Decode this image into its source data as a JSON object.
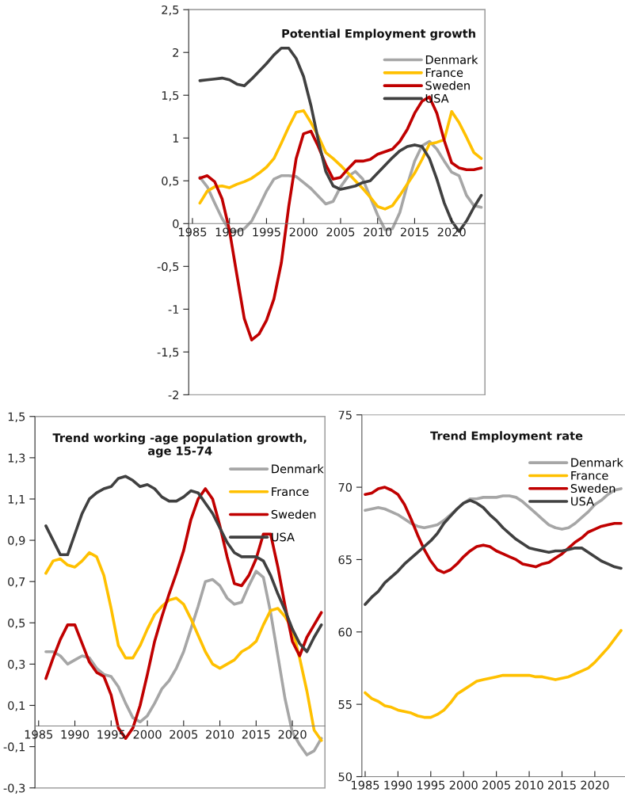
{
  "chart_data": [
    {
      "type": "line",
      "title": "Potential Employment growth",
      "x": [
        1986,
        1987,
        1988,
        1989,
        1990,
        1991,
        1992,
        1993,
        1994,
        1995,
        1996,
        1997,
        1998,
        1999,
        2000,
        2001,
        2002,
        2003,
        2004,
        2005,
        2006,
        2007,
        2008,
        2009,
        2010,
        2011,
        2012,
        2013,
        2014,
        2015,
        2016,
        2017,
        2018,
        2019,
        2020,
        2021,
        2022,
        2023,
        2024
      ],
      "xlim": [
        1984.5,
        2024.5
      ],
      "xticks": [
        1985,
        1990,
        1995,
        2000,
        2005,
        2010,
        2015,
        2020
      ],
      "ylim": [
        -2,
        2.5
      ],
      "yticks": [
        {
          "value": -2,
          "label": "-2"
        },
        {
          "value": -1.5,
          "label": "-1,5"
        },
        {
          "value": -1,
          "label": "-1"
        },
        {
          "value": -0.5,
          "label": "-0,5"
        },
        {
          "value": 0,
          "label": "0"
        },
        {
          "value": 0.5,
          "label": "0,5"
        },
        {
          "value": 1,
          "label": "1"
        },
        {
          "value": 1.5,
          "label": "1,5"
        },
        {
          "value": 2,
          "label": "2"
        },
        {
          "value": 2.5,
          "label": "2,5"
        }
      ],
      "legend": "top right",
      "grid": false,
      "marker": "none",
      "line_style": "solid",
      "series": [
        {
          "name": "Denmark",
          "color": "#a6a6a6",
          "values": [
            0.54,
            0.43,
            0.24,
            0.06,
            -0.08,
            -0.09,
            -0.06,
            0.03,
            0.2,
            0.38,
            0.52,
            0.56,
            0.56,
            0.55,
            0.48,
            0.41,
            0.32,
            0.23,
            0.26,
            0.43,
            0.55,
            0.61,
            0.52,
            0.31,
            0.1,
            -0.07,
            -0.06,
            0.13,
            0.45,
            0.73,
            0.91,
            0.96,
            0.87,
            0.73,
            0.6,
            0.56,
            0.33,
            0.21,
            0.19
          ]
        },
        {
          "name": "France",
          "color": "#ffc000",
          "values": [
            0.24,
            0.38,
            0.43,
            0.44,
            0.42,
            0.46,
            0.49,
            0.53,
            0.59,
            0.66,
            0.76,
            0.94,
            1.13,
            1.3,
            1.32,
            1.18,
            1.02,
            0.83,
            0.76,
            0.68,
            0.59,
            0.5,
            0.41,
            0.31,
            0.2,
            0.17,
            0.21,
            0.33,
            0.46,
            0.59,
            0.75,
            0.93,
            0.95,
            0.98,
            1.31,
            1.18,
            1.01,
            0.83,
            0.76
          ]
        },
        {
          "name": "Sweden",
          "color": "#c00000",
          "values": [
            0.53,
            0.56,
            0.49,
            0.29,
            -0.08,
            -0.6,
            -1.11,
            -1.36,
            -1.29,
            -1.13,
            -0.88,
            -0.46,
            0.2,
            0.76,
            1.05,
            1.08,
            0.9,
            0.69,
            0.52,
            0.54,
            0.64,
            0.73,
            0.73,
            0.75,
            0.81,
            0.84,
            0.87,
            0.96,
            1.1,
            1.29,
            1.43,
            1.48,
            1.29,
            0.97,
            0.71,
            0.65,
            0.63,
            0.63,
            0.65
          ]
        },
        {
          "name": "USA",
          "color": "#404040",
          "values": [
            1.67,
            1.68,
            1.69,
            1.7,
            1.68,
            1.63,
            1.61,
            1.69,
            1.78,
            1.87,
            1.97,
            2.05,
            2.05,
            1.93,
            1.72,
            1.38,
            0.97,
            0.61,
            0.44,
            0.4,
            0.42,
            0.44,
            0.48,
            0.5,
            0.59,
            0.68,
            0.77,
            0.85,
            0.9,
            0.92,
            0.9,
            0.76,
            0.52,
            0.24,
            0.03,
            -0.09,
            0.03,
            0.19,
            0.33
          ]
        }
      ]
    },
    {
      "type": "line",
      "title": "Trend working -age population growth,\nage 15-74",
      "x": [
        1986,
        1987,
        1988,
        1989,
        1990,
        1991,
        1992,
        1993,
        1994,
        1995,
        1996,
        1997,
        1998,
        1999,
        2000,
        2001,
        2002,
        2003,
        2004,
        2005,
        2006,
        2007,
        2008,
        2009,
        2010,
        2011,
        2012,
        2013,
        2014,
        2015,
        2016,
        2017,
        2018,
        2019,
        2020,
        2021,
        2022,
        2023,
        2024
      ],
      "xlim": [
        1984.5,
        2024.5
      ],
      "xticks": [
        1985,
        1990,
        1995,
        2000,
        2005,
        2010,
        2015,
        2020
      ],
      "ylim": [
        -0.3,
        1.5
      ],
      "yticks": [
        {
          "value": -0.3,
          "label": "-0,3"
        },
        {
          "value": -0.1,
          "label": "-0,1"
        },
        {
          "value": 0.1,
          "label": "0,1"
        },
        {
          "value": 0.3,
          "label": "0,3"
        },
        {
          "value": 0.5,
          "label": "0,5"
        },
        {
          "value": 0.7,
          "label": "0,7"
        },
        {
          "value": 0.9,
          "label": "0,9"
        },
        {
          "value": 1.1,
          "label": "1,1"
        },
        {
          "value": 1.3,
          "label": "1,3"
        },
        {
          "value": 1.5,
          "label": "1,5"
        }
      ],
      "legend": "top right",
      "grid": false,
      "marker": "none",
      "line_style": "solid",
      "series": [
        {
          "name": "Denmark",
          "color": "#a6a6a6",
          "values": [
            0.36,
            0.36,
            0.34,
            0.3,
            0.32,
            0.34,
            0.33,
            0.28,
            0.25,
            0.24,
            0.19,
            0.11,
            0.04,
            0.02,
            0.05,
            0.11,
            0.18,
            0.22,
            0.28,
            0.36,
            0.47,
            0.58,
            0.7,
            0.71,
            0.68,
            0.62,
            0.59,
            0.6,
            0.68,
            0.75,
            0.72,
            0.55,
            0.34,
            0.13,
            -0.03,
            -0.09,
            -0.14,
            -0.12,
            -0.06
          ]
        },
        {
          "name": "France",
          "color": "#ffc000",
          "values": [
            0.74,
            0.8,
            0.81,
            0.78,
            0.77,
            0.8,
            0.84,
            0.82,
            0.73,
            0.57,
            0.39,
            0.33,
            0.33,
            0.39,
            0.47,
            0.54,
            0.58,
            0.61,
            0.62,
            0.59,
            0.52,
            0.44,
            0.36,
            0.3,
            0.28,
            0.3,
            0.32,
            0.36,
            0.38,
            0.41,
            0.49,
            0.56,
            0.57,
            0.53,
            0.47,
            0.33,
            0.17,
            -0.02,
            -0.07
          ]
        },
        {
          "name": "Sweden",
          "color": "#c00000",
          "values": [
            0.23,
            0.33,
            0.42,
            0.49,
            0.49,
            0.4,
            0.31,
            0.26,
            0.24,
            0.15,
            -0.01,
            -0.06,
            -0.01,
            0.1,
            0.25,
            0.41,
            0.53,
            0.64,
            0.74,
            0.85,
            1.0,
            1.1,
            1.15,
            1.1,
            0.97,
            0.82,
            0.69,
            0.68,
            0.73,
            0.81,
            0.93,
            0.93,
            0.77,
            0.58,
            0.41,
            0.34,
            0.43,
            0.49,
            0.55
          ]
        },
        {
          "name": "USA",
          "color": "#404040",
          "values": [
            0.97,
            0.9,
            0.83,
            0.83,
            0.93,
            1.03,
            1.1,
            1.13,
            1.15,
            1.16,
            1.2,
            1.21,
            1.19,
            1.16,
            1.17,
            1.15,
            1.11,
            1.09,
            1.09,
            1.11,
            1.14,
            1.13,
            1.08,
            1.03,
            0.96,
            0.89,
            0.84,
            0.82,
            0.82,
            0.82,
            0.8,
            0.73,
            0.64,
            0.56,
            0.47,
            0.4,
            0.36,
            0.43,
            0.49
          ]
        }
      ]
    },
    {
      "type": "line",
      "title": "Trend Employment rate",
      "x": [
        1985,
        1986,
        1987,
        1988,
        1989,
        1990,
        1991,
        1992,
        1993,
        1994,
        1995,
        1996,
        1997,
        1998,
        1999,
        2000,
        2001,
        2002,
        2003,
        2004,
        2005,
        2006,
        2007,
        2008,
        2009,
        2010,
        2011,
        2012,
        2013,
        2014,
        2015,
        2016,
        2017,
        2018,
        2019,
        2020,
        2021,
        2022,
        2023,
        2024
      ],
      "xlim": [
        1984.5,
        2024.6
      ],
      "xticks": [
        1985,
        1990,
        1995,
        2000,
        2005,
        2010,
        2015,
        2020
      ],
      "ylim": [
        50,
        75
      ],
      "yticks": [
        50,
        55,
        60,
        65,
        70,
        75
      ],
      "legend": "top right",
      "grid": false,
      "marker": "none",
      "line_style": "solid",
      "series": [
        {
          "name": "Denmark",
          "color": "#a6a6a6",
          "values": [
            68.4,
            68.5,
            68.6,
            68.5,
            68.3,
            68.1,
            67.8,
            67.5,
            67.3,
            67.2,
            67.3,
            67.4,
            67.7,
            68.1,
            68.5,
            68.9,
            69.2,
            69.2,
            69.3,
            69.3,
            69.3,
            69.4,
            69.4,
            69.3,
            69.0,
            68.6,
            68.2,
            67.8,
            67.4,
            67.2,
            67.1,
            67.2,
            67.5,
            67.9,
            68.3,
            68.8,
            69.1,
            69.5,
            69.8,
            69.9
          ]
        },
        {
          "name": "France",
          "color": "#ffc000",
          "values": [
            55.8,
            55.4,
            55.2,
            54.9,
            54.8,
            54.6,
            54.5,
            54.4,
            54.2,
            54.1,
            54.1,
            54.3,
            54.6,
            55.1,
            55.7,
            56.0,
            56.3,
            56.6,
            56.7,
            56.8,
            56.9,
            57.0,
            57.0,
            57.0,
            57.0,
            57.0,
            56.9,
            56.9,
            56.8,
            56.7,
            56.8,
            56.9,
            57.1,
            57.3,
            57.5,
            57.9,
            58.4,
            58.9,
            59.5,
            60.1
          ]
        },
        {
          "name": "Sweden",
          "color": "#c00000",
          "values": [
            69.5,
            69.6,
            69.9,
            70.0,
            69.8,
            69.5,
            68.8,
            67.8,
            66.7,
            65.7,
            64.9,
            64.3,
            64.1,
            64.3,
            64.7,
            65.2,
            65.6,
            65.9,
            66.0,
            65.9,
            65.6,
            65.4,
            65.2,
            65.0,
            64.7,
            64.6,
            64.5,
            64.7,
            64.8,
            65.1,
            65.4,
            65.8,
            66.2,
            66.5,
            66.9,
            67.1,
            67.3,
            67.4,
            67.5,
            67.5
          ]
        },
        {
          "name": "USA",
          "color": "#404040",
          "values": [
            61.9,
            62.4,
            62.8,
            63.4,
            63.8,
            64.2,
            64.7,
            65.1,
            65.5,
            65.9,
            66.3,
            66.8,
            67.5,
            68.0,
            68.5,
            68.9,
            69.1,
            68.9,
            68.6,
            68.1,
            67.7,
            67.2,
            66.8,
            66.4,
            66.1,
            65.8,
            65.7,
            65.6,
            65.5,
            65.6,
            65.6,
            65.7,
            65.8,
            65.8,
            65.5,
            65.2,
            64.9,
            64.7,
            64.5,
            64.4
          ]
        }
      ]
    }
  ]
}
